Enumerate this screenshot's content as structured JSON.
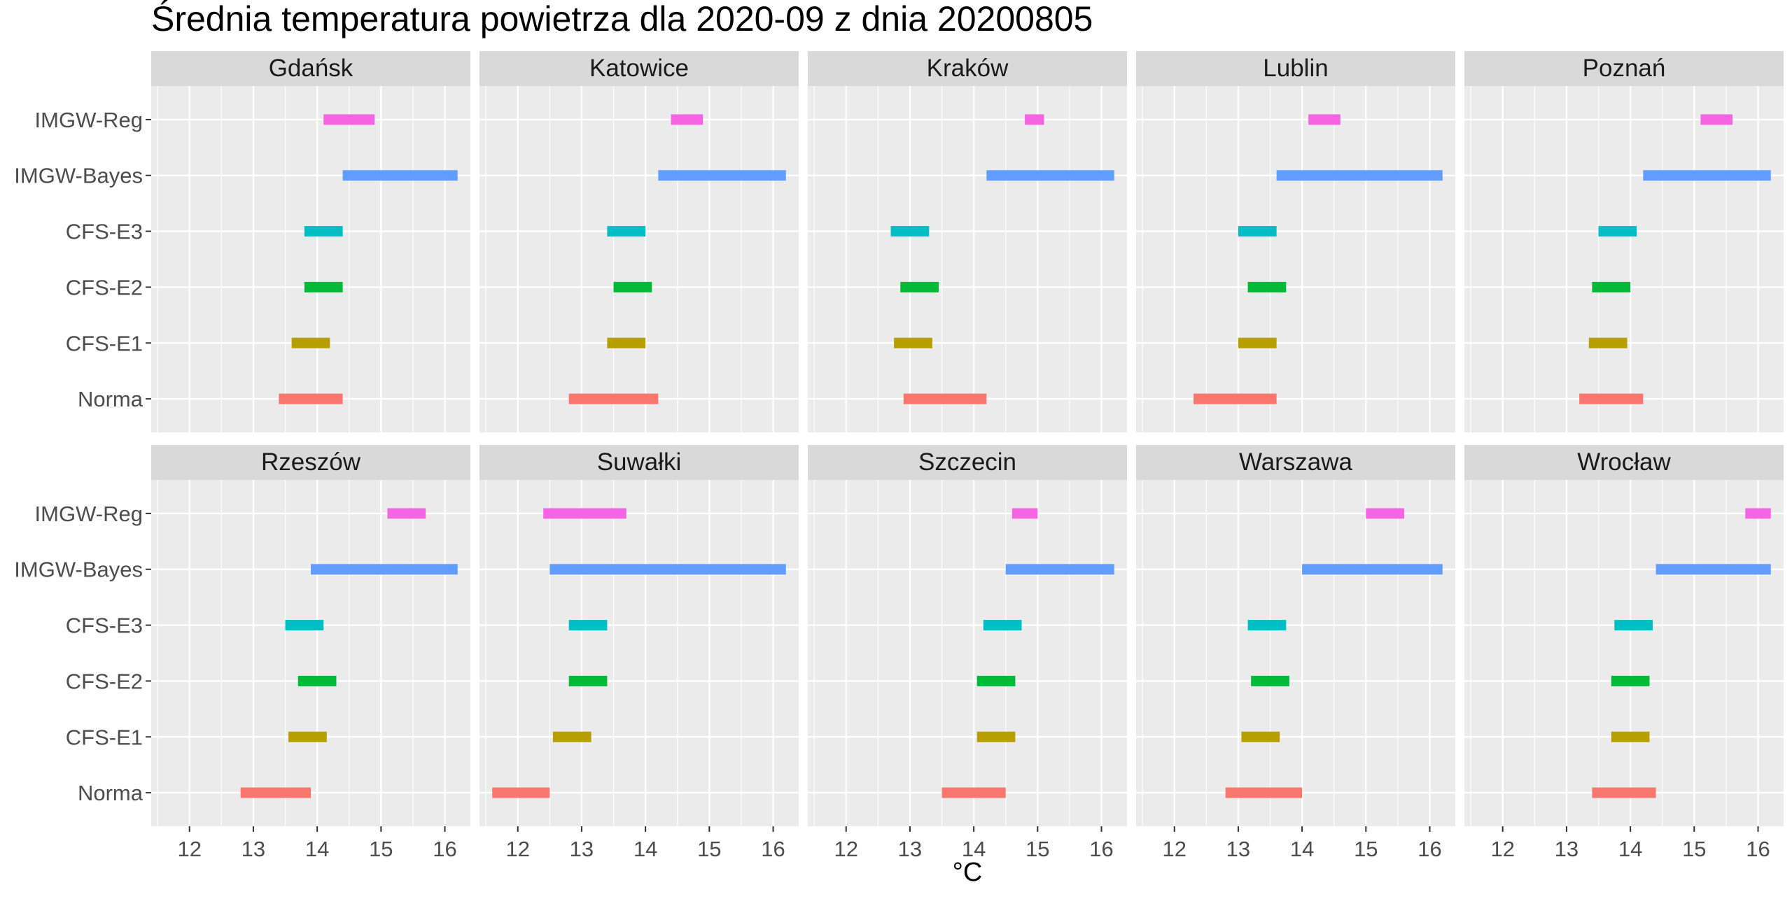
{
  "chart_data": {
    "type": "range-bar-facet",
    "title": "Średnia temperatura powietrza dla 2020-09 z dnia 20200805",
    "xlabel": "°C",
    "ylabel": "",
    "xlim": [
      11.4,
      16.4
    ],
    "x_ticks": [
      12,
      13,
      14,
      15,
      16
    ],
    "categories": [
      "Norma",
      "CFS-E1",
      "CFS-E2",
      "CFS-E3",
      "IMGW-Bayes",
      "IMGW-Reg"
    ],
    "colors": {
      "Norma": "#F8766D",
      "CFS-E1": "#B79F00",
      "CFS-E2": "#00BA38",
      "CFS-E3": "#00BFC4",
      "IMGW-Bayes": "#619CFF",
      "IMGW-Reg": "#F564E3"
    },
    "grid": true,
    "legend": "none",
    "panels": [
      {
        "name": "Gdańsk",
        "ranges": {
          "Norma": [
            13.4,
            14.4
          ],
          "CFS-E1": [
            13.6,
            14.2
          ],
          "CFS-E2": [
            13.8,
            14.4
          ],
          "CFS-E3": [
            13.8,
            14.4
          ],
          "IMGW-Bayes": [
            14.4,
            16.2
          ],
          "IMGW-Reg": [
            14.1,
            14.9
          ]
        }
      },
      {
        "name": "Katowice",
        "ranges": {
          "Norma": [
            12.8,
            14.2
          ],
          "CFS-E1": [
            13.4,
            14.0
          ],
          "CFS-E2": [
            13.5,
            14.1
          ],
          "CFS-E3": [
            13.4,
            14.0
          ],
          "IMGW-Bayes": [
            14.2,
            16.2
          ],
          "IMGW-Reg": [
            14.4,
            14.9
          ]
        }
      },
      {
        "name": "Kraków",
        "ranges": {
          "Norma": [
            12.9,
            14.2
          ],
          "CFS-E1": [
            12.75,
            13.35
          ],
          "CFS-E2": [
            12.85,
            13.45
          ],
          "CFS-E3": [
            12.7,
            13.3
          ],
          "IMGW-Bayes": [
            14.2,
            16.2
          ],
          "IMGW-Reg": [
            14.8,
            15.1
          ]
        }
      },
      {
        "name": "Lublin",
        "ranges": {
          "Norma": [
            12.3,
            13.6
          ],
          "CFS-E1": [
            13.0,
            13.6
          ],
          "CFS-E2": [
            13.15,
            13.75
          ],
          "CFS-E3": [
            13.0,
            13.6
          ],
          "IMGW-Bayes": [
            13.6,
            16.2
          ],
          "IMGW-Reg": [
            14.1,
            14.6
          ]
        }
      },
      {
        "name": "Poznań",
        "ranges": {
          "Norma": [
            13.2,
            14.2
          ],
          "CFS-E1": [
            13.35,
            13.95
          ],
          "CFS-E2": [
            13.4,
            14.0
          ],
          "CFS-E3": [
            13.5,
            14.1
          ],
          "IMGW-Bayes": [
            14.2,
            16.2
          ],
          "IMGW-Reg": [
            15.1,
            15.6
          ]
        }
      },
      {
        "name": "Rzeszów",
        "ranges": {
          "Norma": [
            12.8,
            13.9
          ],
          "CFS-E1": [
            13.55,
            14.15
          ],
          "CFS-E2": [
            13.7,
            14.3
          ],
          "CFS-E3": [
            13.5,
            14.1
          ],
          "IMGW-Bayes": [
            13.9,
            16.2
          ],
          "IMGW-Reg": [
            15.1,
            15.7
          ]
        }
      },
      {
        "name": "Suwałki",
        "ranges": {
          "Norma": [
            11.6,
            12.5
          ],
          "CFS-E1": [
            12.55,
            13.15
          ],
          "CFS-E2": [
            12.8,
            13.4
          ],
          "CFS-E3": [
            12.8,
            13.4
          ],
          "IMGW-Bayes": [
            12.5,
            16.2
          ],
          "IMGW-Reg": [
            12.4,
            13.7
          ]
        }
      },
      {
        "name": "Szczecin",
        "ranges": {
          "Norma": [
            13.5,
            14.5
          ],
          "CFS-E1": [
            14.05,
            14.65
          ],
          "CFS-E2": [
            14.05,
            14.65
          ],
          "CFS-E3": [
            14.15,
            14.75
          ],
          "IMGW-Bayes": [
            14.5,
            16.2
          ],
          "IMGW-Reg": [
            14.6,
            15.0
          ]
        }
      },
      {
        "name": "Warszawa",
        "ranges": {
          "Norma": [
            12.8,
            14.0
          ],
          "CFS-E1": [
            13.05,
            13.65
          ],
          "CFS-E2": [
            13.2,
            13.8
          ],
          "CFS-E3": [
            13.15,
            13.75
          ],
          "IMGW-Bayes": [
            14.0,
            16.2
          ],
          "IMGW-Reg": [
            15.0,
            15.6
          ]
        }
      },
      {
        "name": "Wrocław",
        "ranges": {
          "Norma": [
            13.4,
            14.4
          ],
          "CFS-E1": [
            13.7,
            14.3
          ],
          "CFS-E2": [
            13.7,
            14.3
          ],
          "CFS-E3": [
            13.75,
            14.35
          ],
          "IMGW-Bayes": [
            14.4,
            16.2
          ],
          "IMGW-Reg": [
            15.8,
            16.2
          ]
        }
      }
    ]
  }
}
